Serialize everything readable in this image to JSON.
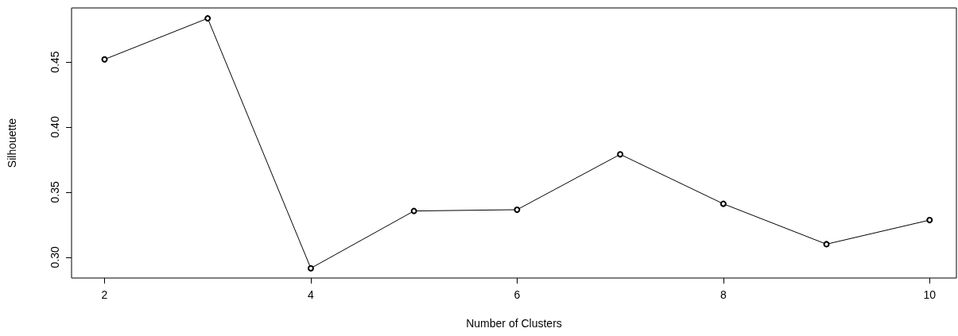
{
  "chart_data": {
    "type": "line",
    "xlabel": "Number of Clusters",
    "ylabel": "Silhouette",
    "x": [
      2,
      3,
      4,
      5,
      6,
      7,
      8,
      9,
      10
    ],
    "series": [
      {
        "color": "#000000",
        "values": [
          0.452,
          0.4835,
          0.2915,
          0.3355,
          0.3365,
          0.379,
          0.341,
          0.31,
          0.3285
        ]
      }
    ],
    "xlim": [
      1.68,
      10.26
    ],
    "xticks": [
      2,
      4,
      6,
      8,
      10
    ],
    "ylim": [
      0.284,
      0.4915
    ],
    "yticks": [
      {
        "value": 0.3,
        "label": "0.30"
      },
      0.35,
      {
        "value": 0.4,
        "label": "0.40"
      },
      0.45
    ],
    "grid": false,
    "marker": "circle",
    "line_style": "solid"
  }
}
